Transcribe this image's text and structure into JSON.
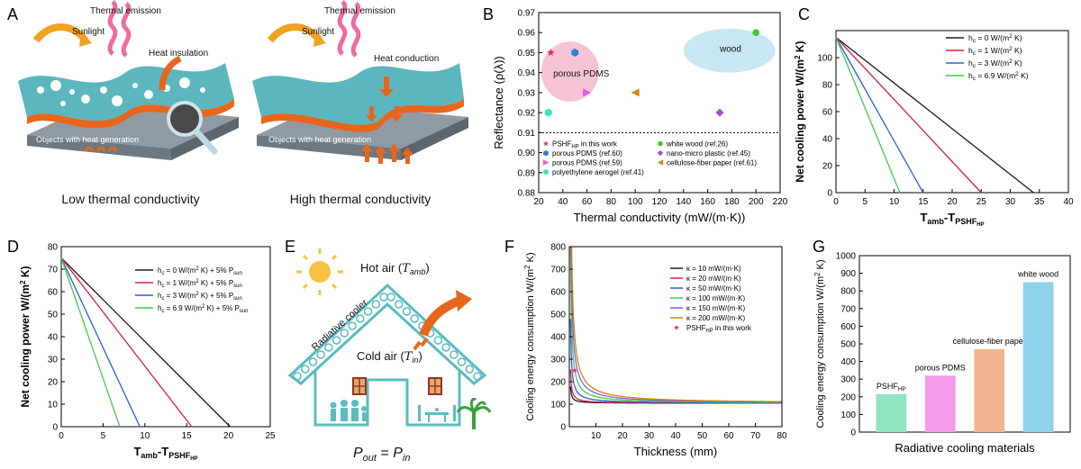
{
  "panels": {
    "A": {
      "label": "A",
      "left": {
        "sunlight": "Sunlight",
        "thermal_emission": "Thermal emission",
        "heat_insulation": "Heat insulation",
        "objects": "Objects with heat generation",
        "caption": "Low thermal conductivity"
      },
      "right": {
        "sunlight": "Sunlight",
        "thermal_emission": "Thermal emission",
        "heat_conduction": "Heat conduction",
        "objects": "Objects with heat generation",
        "caption": "High thermal conductivity"
      },
      "colors": {
        "slab": "#5bb7bd",
        "slab_dark": "#2f8d93",
        "base": "#8f9aa3",
        "orange": "#e8661c",
        "pink": "#f06aa0",
        "gold": "#f0a321"
      }
    },
    "E": {
      "label": "E",
      "hot_air": "Hot air (",
      "hot_air_var": "T",
      "hot_air_sub": "amb",
      "cold_air": "Cold air (",
      "cold_air_var": "T",
      "cold_air_sub": "in",
      "close_paren": ")",
      "radiative_cooler": "Radiative cooler",
      "equation_lhs": "P",
      "equation_lhs_sub": "out",
      "equation_eq": " = ",
      "equation_rhs": "P",
      "equation_rhs_sub": "in",
      "colors": {
        "house": "#5bbcbf",
        "sun": "#f7c244",
        "arrow": "#e8661c",
        "people": "#5bbcbf",
        "palm": "#3c9d3c"
      }
    }
  },
  "chart_data": [
    {
      "id": "B",
      "label": "B",
      "type": "scatter",
      "xlabel": "Thermal conductivity (mW/(m·K))",
      "ylabel": "Reflectance (ρ(λ))",
      "xlim": [
        20,
        220
      ],
      "ylim": [
        0.88,
        0.97
      ],
      "xticks": [
        20,
        40,
        60,
        80,
        100,
        120,
        140,
        160,
        180,
        200,
        220
      ],
      "yticks": [
        0.88,
        0.89,
        0.9,
        0.91,
        0.92,
        0.93,
        0.94,
        0.95,
        0.96,
        0.97
      ],
      "ytick_labels": [
        "0.88",
        "0.89",
        "0.90",
        "0.91",
        "0.92",
        "0.93",
        "0.94",
        "0.95",
        "0.96",
        "0.97"
      ],
      "hline": 0.91,
      "regions": [
        {
          "name": "porous PDMS",
          "cx": 46,
          "cy": 0.9405,
          "rx": 24,
          "ry": 0.015,
          "color": "#f6c4d6"
        },
        {
          "name": "wood",
          "cx": 178,
          "cy": 0.951,
          "rx": 38,
          "ry": 0.011,
          "color": "#c9e7f2"
        }
      ],
      "points": [
        {
          "name": "PSHF",
          "name_sub": "HP",
          "name_rest": " in this work",
          "x": 30,
          "y": 0.95,
          "marker": "star",
          "color": "#e0316b"
        },
        {
          "name": "porous PDMS (ref.60)",
          "x": 50,
          "y": 0.95,
          "marker": "hexagon",
          "color": "#2f7fd8"
        },
        {
          "name": "porous PDMS (ref.59)",
          "x": 60,
          "y": 0.93,
          "marker": "triangle-right",
          "color": "#ee55e0"
        },
        {
          "name": "polyethylene aerogel (ref.41)",
          "x": 28,
          "y": 0.92,
          "marker": "hexagon",
          "color": "#38e3c0"
        },
        {
          "name": "white wood (ref.26)",
          "x": 200,
          "y": 0.96,
          "marker": "circle",
          "color": "#3dc62c"
        },
        {
          "name": "nano-micro plastic (ref.45)",
          "x": 170,
          "y": 0.92,
          "marker": "diamond",
          "color": "#9b4fe0"
        },
        {
          "name": "cellulose-fiber paper (ref.61)",
          "x": 100,
          "y": 0.93,
          "marker": "triangle-left",
          "color": "#c88a12"
        }
      ]
    },
    {
      "id": "C",
      "label": "C",
      "type": "line",
      "xlabel": "T",
      "xlabel_sub": "amb",
      "xlabel_dash": "-T",
      "xlabel_sub2": "PSHF",
      "xlabel_sub3": "HP",
      "ylabel": "Net cooling power  W/(m",
      "ylabel_sup": "2",
      "ylabel_end": " K)",
      "xlim": [
        0,
        40
      ],
      "ylim": [
        0,
        120
      ],
      "xticks": [
        0,
        5,
        10,
        15,
        20,
        25,
        30,
        35,
        40
      ],
      "yticks": [
        0,
        20,
        40,
        60,
        80,
        100
      ],
      "series": [
        {
          "name": "h",
          "name_sub": "c",
          "name_rest": " = 0 W/(m",
          "name_sup": "2",
          "name_end": " K)",
          "x": [
            0,
            34
          ],
          "y": [
            115,
            0
          ],
          "color": "#1a1a1a"
        },
        {
          "name": "h",
          "name_sub": "c",
          "name_rest": " = 1 W/(m",
          "name_sup": "2",
          "name_end": " K)",
          "x": [
            0,
            25
          ],
          "y": [
            115,
            0
          ],
          "color": "#d91f45"
        },
        {
          "name": "h",
          "name_sub": "c",
          "name_rest": " = 3 W/(m",
          "name_sup": "2",
          "name_end": " K)",
          "x": [
            0,
            15
          ],
          "y": [
            115,
            0
          ],
          "color": "#2a5fe0"
        },
        {
          "name": "h",
          "name_sub": "c",
          "name_rest": " = 6.9 W/(m",
          "name_sup": "2",
          "name_end": " K)",
          "x": [
            0,
            11
          ],
          "y": [
            115,
            0
          ],
          "color": "#3fcf3f"
        }
      ]
    },
    {
      "id": "D",
      "label": "D",
      "type": "line",
      "xlabel": "T",
      "xlabel_sub": "amb",
      "xlabel_dash": "-T",
      "xlabel_sub2": "PSHF",
      "xlabel_sub3": "HP",
      "ylabel": "Net cooling power  W/(m",
      "ylabel_sup": "2",
      "ylabel_end": " K)",
      "xlim": [
        0,
        25
      ],
      "ylim": [
        0,
        80
      ],
      "xticks": [
        0,
        5,
        10,
        15,
        20,
        25
      ],
      "yticks": [
        0,
        10,
        20,
        30,
        40,
        50,
        60,
        70,
        80
      ],
      "series": [
        {
          "name": "h",
          "name_sub": "c",
          "name_rest": " = 0 W/(m",
          "name_sup": "2",
          "name_end": " K) + 5% P",
          "name_sub2": "sun",
          "x": [
            0,
            20.2
          ],
          "y": [
            75,
            0
          ],
          "color": "#1a1a1a"
        },
        {
          "name": "h",
          "name_sub": "c",
          "name_rest": " = 1 W/(m",
          "name_sup": "2",
          "name_end": " K) + 5% P",
          "name_sub2": "sun",
          "x": [
            0,
            15.6
          ],
          "y": [
            75,
            0
          ],
          "color": "#d91f45"
        },
        {
          "name": "h",
          "name_sub": "c",
          "name_rest": " = 3 W/(m",
          "name_sup": "2",
          "name_end": " K) + 5% P",
          "name_sub2": "sun",
          "x": [
            0,
            9.4
          ],
          "y": [
            75,
            0
          ],
          "color": "#2a5fe0"
        },
        {
          "name": "h",
          "name_sub": "c",
          "name_rest": " = 6.9 W/(m",
          "name_sup": "2",
          "name_end": " K) + 5% P",
          "name_sub2": "sun",
          "x": [
            0,
            7.0
          ],
          "y": [
            75,
            0
          ],
          "color": "#3fcf3f"
        }
      ]
    },
    {
      "id": "F",
      "label": "F",
      "type": "line",
      "xlabel": "Thickness (mm)",
      "ylabel": "Cooling energy consumption  W/(m",
      "ylabel_sup": "2",
      "ylabel_end": " K)",
      "xlim": [
        0,
        80
      ],
      "ylim": [
        0,
        800
      ],
      "xticks": [
        10,
        20,
        30,
        40,
        50,
        60,
        70,
        80
      ],
      "yticks": [
        0,
        100,
        200,
        300,
        400,
        500,
        600,
        700,
        800
      ],
      "series": [
        {
          "name": "κ = ",
          "name_value": "10",
          "name_unit": " mW/(m·K)",
          "a": 104,
          "b": 3,
          "color": "#1a1a1a"
        },
        {
          "name": "κ = ",
          "name_value": "20",
          "name_unit": " mW/(m·K)",
          "a": 104,
          "b": 6,
          "color": "#d91f45"
        },
        {
          "name": "κ = ",
          "name_value": "50",
          "name_unit": " mW/(m·K)",
          "a": 104,
          "b": 15,
          "color": "#2a5fe0"
        },
        {
          "name": "κ = ",
          "name_value": "100",
          "name_unit": " mW/(m·K)",
          "a": 104,
          "b": 30,
          "color": "#3fcf3f"
        },
        {
          "name": "κ = ",
          "name_value": "150",
          "name_unit": " mW/(m·K)",
          "a": 104,
          "b": 45,
          "color": "#9b55e0"
        },
        {
          "name": "κ = ",
          "name_value": "200",
          "name_unit": " mW/(m·K)",
          "a": 104,
          "b": 60,
          "color": "#c88a12"
        }
      ],
      "point": {
        "name": "PSHF",
        "name_sub": "HP",
        "name_rest": " in this work",
        "x": 2,
        "y": 250,
        "color": "#e0316b"
      }
    },
    {
      "id": "G",
      "label": "G",
      "type": "bar",
      "xlabel": "Radiative cooling materials",
      "ylabel": "Cooling energy consumption  W/(m",
      "ylabel_sup": "2",
      "ylabel_end": " K)",
      "ylim": [
        0,
        1000
      ],
      "yticks": [
        0,
        100,
        200,
        300,
        400,
        500,
        600,
        700,
        800,
        900,
        1000
      ],
      "categories": [
        "PSHF",
        "porous PDMS",
        "cellulose-fiber paper",
        "white wood"
      ],
      "category_sub": [
        "HP",
        "",
        "",
        ""
      ],
      "values": [
        215,
        320,
        470,
        850
      ],
      "colors": [
        "#8fe6c0",
        "#f49ae8",
        "#f2b48e",
        "#8fd2ea"
      ]
    }
  ]
}
